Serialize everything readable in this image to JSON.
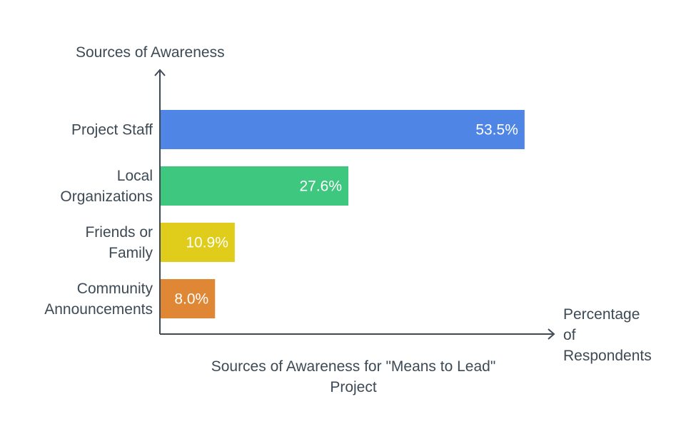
{
  "chart_data": {
    "type": "bar",
    "orientation": "horizontal",
    "title": "Sources of Awareness for \"Means to Lead\" Project",
    "title_lines": [
      "Sources of Awareness for \"Means to Lead\"",
      "Project"
    ],
    "ylabel": "Sources of Awareness",
    "xlabel": "Percentage of Respondents",
    "xlabel_lines": [
      "Percentage",
      "of",
      "Respondents"
    ],
    "categories": [
      "Project Staff",
      "Local Organizations",
      "Friends or Family",
      "Community Announcements"
    ],
    "category_lines": [
      [
        "Project Staff"
      ],
      [
        "Local",
        "Organizations"
      ],
      [
        "Friends or",
        "Family"
      ],
      [
        "Community",
        "Announcements"
      ]
    ],
    "values": [
      53.5,
      27.6,
      10.9,
      8.0
    ],
    "data_labels": [
      "53.5%",
      "27.6%",
      "10.9%",
      "8.0%"
    ],
    "colors": [
      "#4f86e5",
      "#3ec77f",
      "#e0cc1b",
      "#e08735"
    ],
    "xlim": [
      0,
      57.5
    ],
    "grid": false,
    "legend": "none"
  }
}
